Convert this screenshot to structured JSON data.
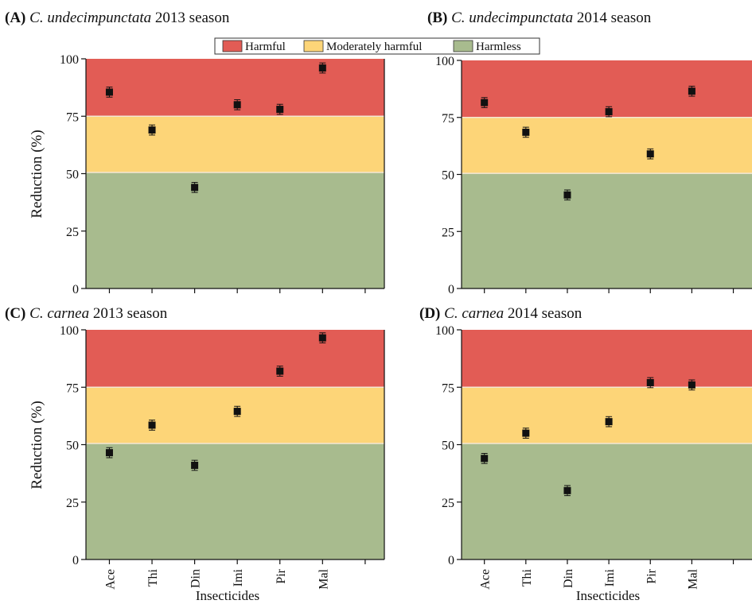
{
  "legend": {
    "items": [
      {
        "label": "Harmful",
        "color": "#e25c55"
      },
      {
        "label": "Moderately harmful",
        "color": "#fdd578"
      },
      {
        "label": "Harmless",
        "color": "#a8bb8e"
      }
    ]
  },
  "shared": {
    "ylabel": "Reduction (%)",
    "xlabel": "Insecticides",
    "yticks": [
      0,
      25,
      50,
      75,
      100
    ]
  },
  "chart_data": [
    {
      "type": "scatter",
      "panel": "(A)",
      "species": "C. undecimpunctata",
      "season": "2013 season",
      "categories": [
        "Ace",
        "Thi",
        "Din",
        "Imi",
        "Pir",
        "Mal"
      ],
      "values": [
        85.5,
        69,
        44,
        80,
        78,
        96
      ],
      "errors": [
        1.5,
        1.5,
        1.5,
        1.5,
        1.5,
        1.5
      ],
      "ylim": [
        0,
        100
      ],
      "bands": [
        {
          "from": 0,
          "to": 50.5,
          "label": "Harmless"
        },
        {
          "from": 50.5,
          "to": 75,
          "label": "Moderately harmful"
        },
        {
          "from": 75,
          "to": 100,
          "label": "Harmful"
        }
      ],
      "ylabel": "Reduction (%)",
      "xlabel": ""
    },
    {
      "type": "scatter",
      "panel": "(B)",
      "species": "C. undecimpunctata",
      "season": "2014 season",
      "categories": [
        "Ace",
        "Thi",
        "Din",
        "Imi",
        "Pir",
        "Mal"
      ],
      "values": [
        81.5,
        68.5,
        41,
        77.5,
        59,
        86.5
      ],
      "errors": [
        1.5,
        1.5,
        1.5,
        1.5,
        1.5,
        1.5
      ],
      "ylim": [
        0,
        100
      ],
      "bands": [
        {
          "from": 0,
          "to": 50.5,
          "label": "Harmless"
        },
        {
          "from": 50.5,
          "to": 75,
          "label": "Moderately harmful"
        },
        {
          "from": 75,
          "to": 100,
          "label": "Harmful"
        }
      ],
      "ylabel": "",
      "xlabel": ""
    },
    {
      "type": "scatter",
      "panel": "(C)",
      "species": "C. carnea",
      "season": "2013 season",
      "categories": [
        "Ace",
        "Thi",
        "Din",
        "Imi",
        "Pir",
        "Mal"
      ],
      "values": [
        46.5,
        58.5,
        41,
        64.5,
        82,
        96.5
      ],
      "errors": [
        1.5,
        1.5,
        1.5,
        1.5,
        1.5,
        1.5
      ],
      "ylim": [
        0,
        100
      ],
      "bands": [
        {
          "from": 0,
          "to": 50.5,
          "label": "Harmless"
        },
        {
          "from": 50.5,
          "to": 75,
          "label": "Moderately harmful"
        },
        {
          "from": 75,
          "to": 100,
          "label": "Harmful"
        }
      ],
      "ylabel": "Reduction (%)",
      "xlabel": "Insecticides"
    },
    {
      "type": "scatter",
      "panel": "(D)",
      "species": "C. carnea",
      "season": "2014 season",
      "categories": [
        "Ace",
        "Thi",
        "Din",
        "Imi",
        "Pir",
        "Mal"
      ],
      "values": [
        44,
        55,
        30,
        60,
        77,
        76
      ],
      "errors": [
        1.5,
        1.5,
        1.5,
        1.5,
        1.5,
        1.5
      ],
      "ylim": [
        0,
        100
      ],
      "bands": [
        {
          "from": 0,
          "to": 50.5,
          "label": "Harmless"
        },
        {
          "from": 50.5,
          "to": 75,
          "label": "Moderately harmful"
        },
        {
          "from": 75,
          "to": 100,
          "label": "Harmful"
        }
      ],
      "ylabel": "",
      "xlabel": "Insecticides"
    }
  ]
}
